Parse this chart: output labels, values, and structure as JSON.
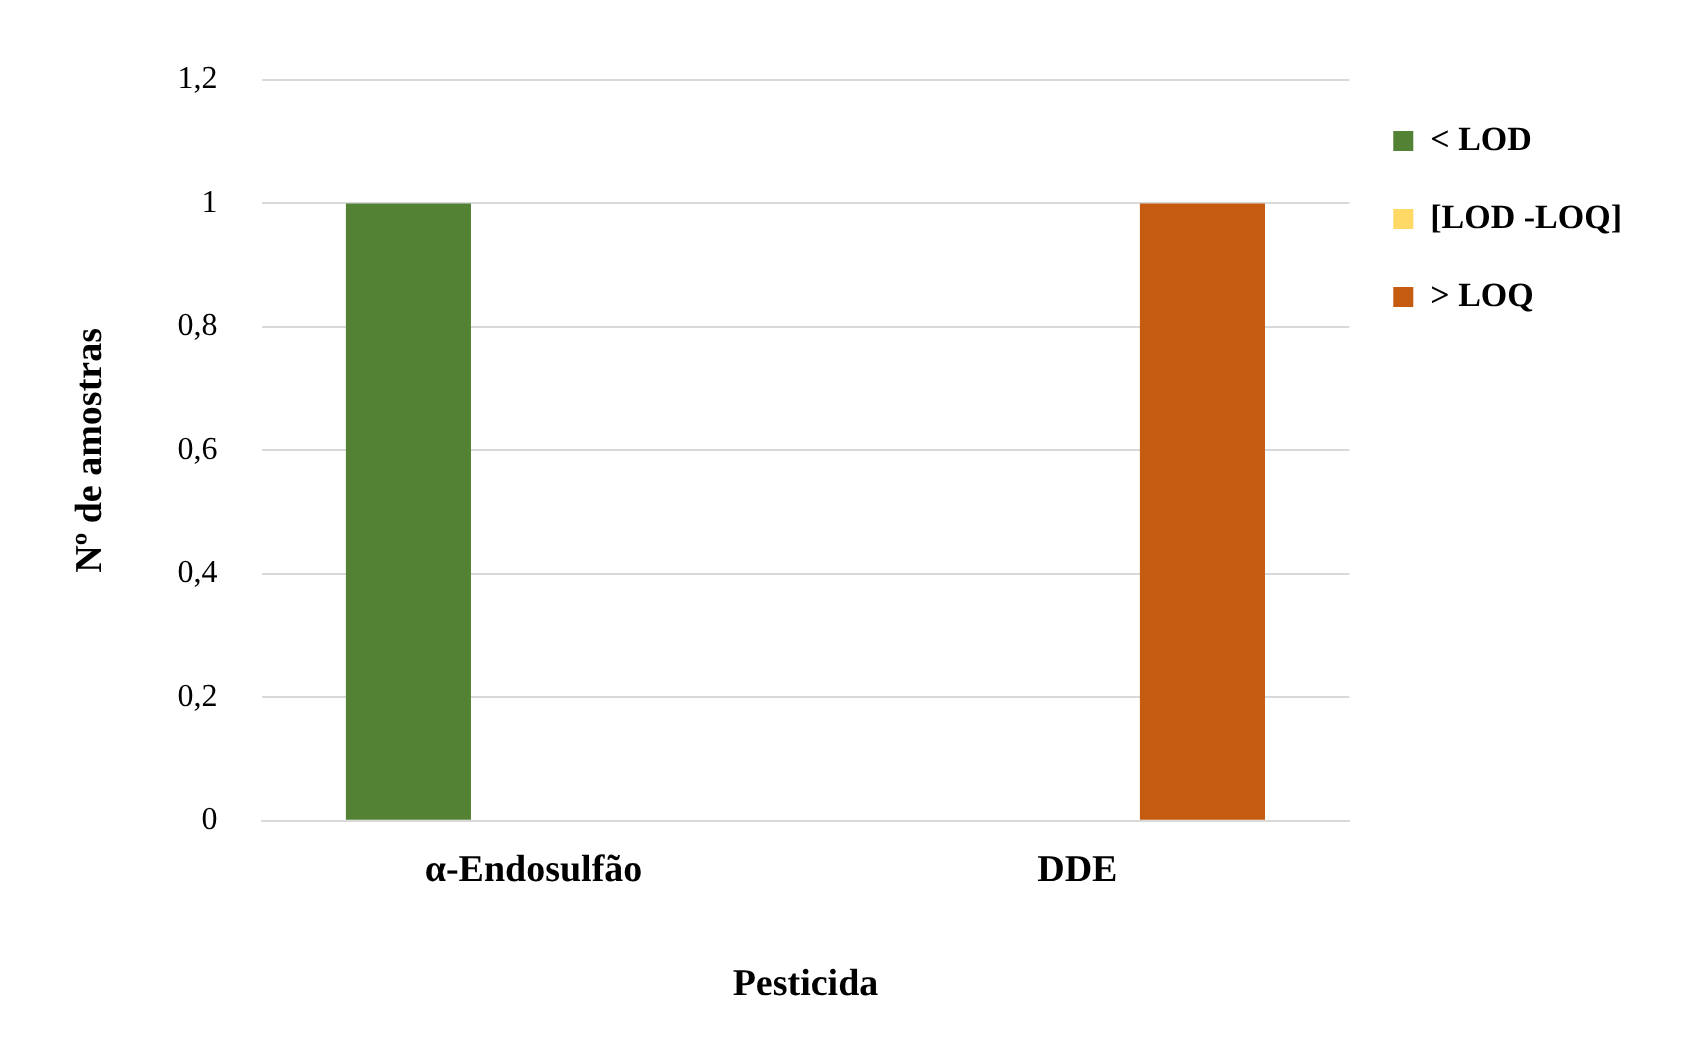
{
  "chart_data": {
    "type": "bar",
    "xlabel": "Pesticida",
    "ylabel": "Nº de amostras",
    "categories": [
      "α-Endosulfão",
      "DDE"
    ],
    "series": [
      {
        "name": "< LOD",
        "color": "#548235",
        "values": [
          1,
          0
        ]
      },
      {
        "name": "[LOD -LOQ]",
        "color": "#ffd966",
        "values": [
          0,
          0
        ]
      },
      {
        "name": "> LOQ",
        "color": "#c55a11",
        "values": [
          0,
          1
        ]
      }
    ],
    "ylim": [
      0,
      1.2
    ],
    "yticks": [
      0,
      {
        "value": 0.2,
        "label": "0,2"
      },
      {
        "value": 0.4,
        "label": "0,4"
      },
      {
        "value": 0.6,
        "label": "0,6"
      },
      {
        "value": 0.8,
        "label": "0,8"
      },
      1,
      {
        "value": 1.2,
        "label": "1,2"
      }
    ],
    "grid": "y",
    "legend": "top right"
  }
}
